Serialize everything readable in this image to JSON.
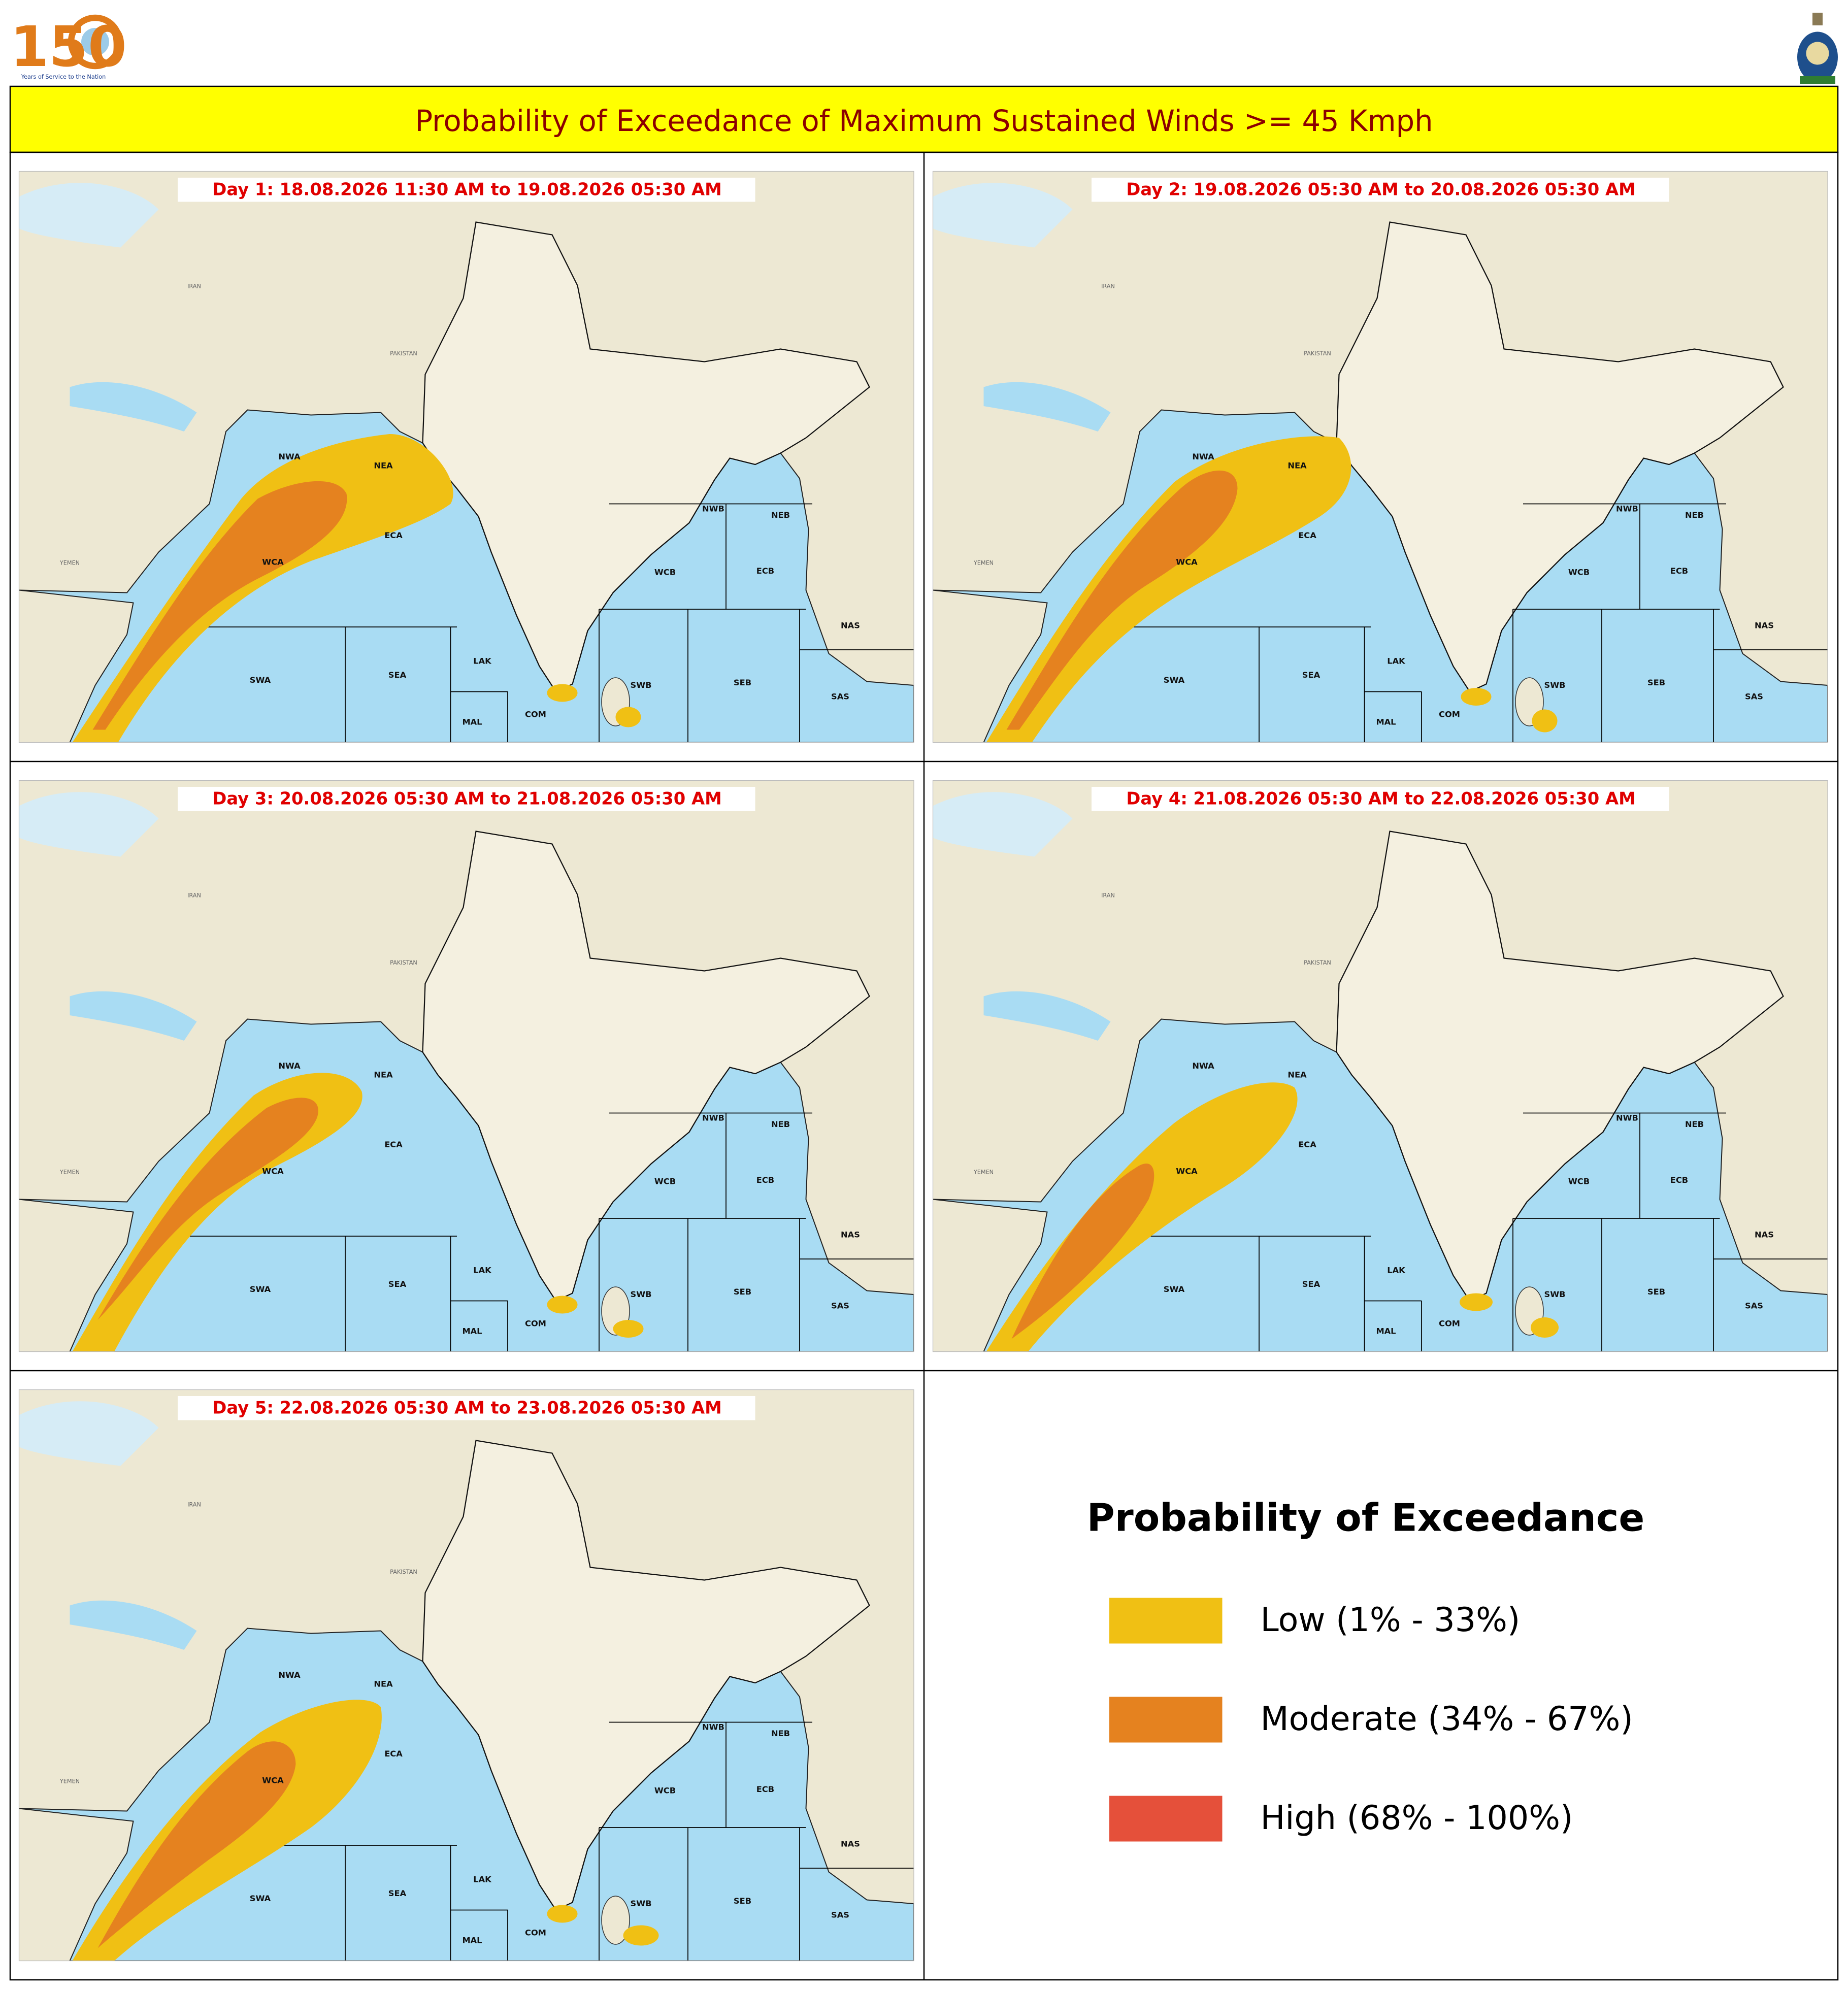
{
  "header": {
    "logo_text": "150",
    "logo_caption": "Years of Service to the Nation",
    "title": "Probability of Exceedance of Maximum Sustained Winds >= 45 Kmph"
  },
  "panels": [
    {
      "label": "Day 1: 18.08.2026 11:30 AM to 19.08.2026 05:30 AM"
    },
    {
      "label": "Day 2: 19.08.2026 05:30 AM to 20.08.2026 05:30 AM"
    },
    {
      "label": "Day 3: 20.08.2026 05:30 AM to 21.08.2026 05:30 AM"
    },
    {
      "label": "Day 4: 21.08.2026 05:30 AM to 22.08.2026 05:30 AM"
    },
    {
      "label": "Day 5: 22.08.2026 05:30 AM to 23.08.2026 05:30 AM"
    }
  ],
  "regions": [
    "NWA",
    "NEA",
    "ECA",
    "WCA",
    "SWA",
    "SEA",
    "LAK",
    "MAL",
    "COM",
    "NWB",
    "NEB",
    "WCB",
    "ECB",
    "NAS",
    "SAS",
    "SWB",
    "SEB"
  ],
  "map_labels": [
    "IRAN",
    "PAKISTAN",
    "YEMEN"
  ],
  "legend": {
    "title": "Probability of Exceedance",
    "items": [
      {
        "label": "Low (1% - 33%)",
        "color": "#f0c014"
      },
      {
        "label": "Moderate (34% - 67%)",
        "color": "#e5821f"
      },
      {
        "label": "High (68% - 100%)",
        "color": "#e5503a"
      }
    ]
  }
}
